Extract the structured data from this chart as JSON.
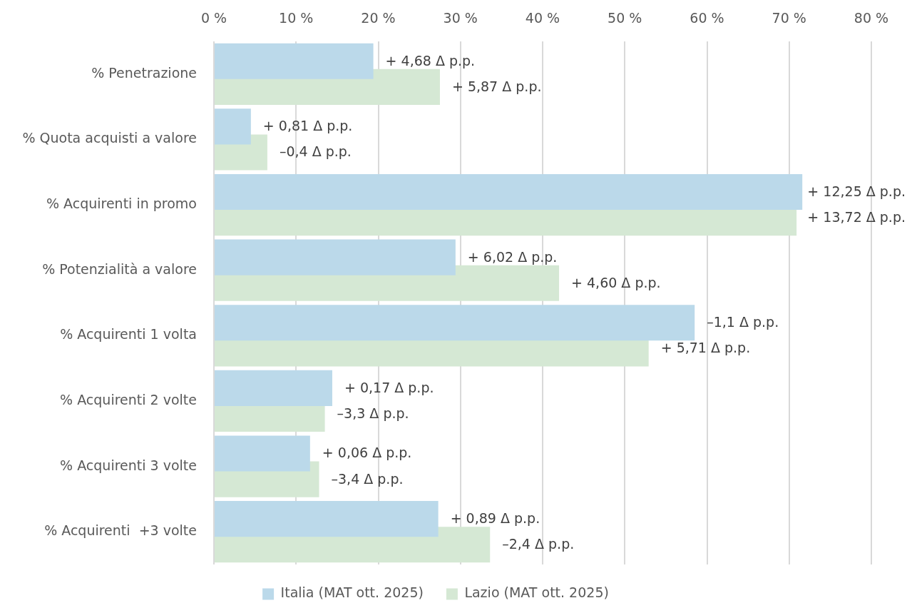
{
  "chart_data": {
    "type": "bar",
    "orientation": "horizontal",
    "categories": [
      "% Penetrazione",
      "% Quota acquisti a valore",
      "% Acquirenti in promo",
      "% Potenzialità a valore",
      "% Acquirenti 1 volta",
      "% Acquirenti 2 volte",
      "% Acquirenti 3 volte",
      "% Acquirenti  +3 volte"
    ],
    "series": [
      {
        "name": "Italia (MAT ott. 2025)",
        "color": "#bbd9ea",
        "values": [
          19.4,
          4.5,
          71.6,
          29.4,
          58.5,
          14.4,
          11.7,
          27.3
        ]
      },
      {
        "name": "Lazio (MAT ott. 2025)",
        "color": "#d5e8d4",
        "values": [
          27.5,
          6.5,
          70.9,
          42.0,
          52.9,
          13.5,
          12.8,
          33.6
        ]
      }
    ],
    "annotations": [
      {
        "text": "+ 4,68 Δ p.p.",
        "x": 19.4,
        "y": "% Penetrazione"
      },
      {
        "text": "+ 5,87 Δ p.p.",
        "x": 27.5,
        "y": "% Penetrazione"
      },
      {
        "text": "+ 0,81 Δ p.p.",
        "x": 4.5,
        "y": "% Quota acquisti a valore"
      },
      {
        "text": "–0,4 Δ p.p.",
        "x": 6.5,
        "y": "% Quota acquisti a valore"
      },
      {
        "text": "+ 12,25 Δ p.p.",
        "x": 71.6,
        "y": "% Acquirenti in promo"
      },
      {
        "text": "+ 13,72 Δ p.p.",
        "x": 70.9,
        "y": "% Acquirenti in promo"
      },
      {
        "text": "+ 6,02 Δ p.p.",
        "x": 29.4,
        "y": "% Potenzialità a valore"
      },
      {
        "text": "+ 4,60 Δ p.p.",
        "x": 42.0,
        "y": "% Potenzialità a valore"
      },
      {
        "text": "–1,1 Δ p.p.",
        "x": 58.5,
        "y": "% Acquirenti 1 volta"
      },
      {
        "text": "+ 5,71 Δ p.p.",
        "x": 52.9,
        "y": "% Acquirenti 1 volta"
      },
      {
        "text": "+ 0,17 Δ p.p.",
        "x": 14.4,
        "y": "% Acquirenti 2 volte"
      },
      {
        "text": "–3,3 Δ p.p.",
        "x": 13.5,
        "y": "% Acquirenti 2 volte"
      },
      {
        "text": "+ 0,06 Δ p.p.",
        "x": 11.7,
        "y": "% Acquirenti 3 volte"
      },
      {
        "text": "–3,4 Δ p.p.",
        "x": 12.8,
        "y": "% Acquirenti 3 volte"
      },
      {
        "text": "+ 0,89 Δ p.p.",
        "x": 27.3,
        "y": "% Acquirenti  +3 volte"
      },
      {
        "text": "–2,4 Δ p.p.",
        "x": 33.6,
        "y": "% Acquirenti  +3 volte"
      }
    ],
    "xlim": [
      0,
      80
    ],
    "xticks": [
      {
        "value": 0,
        "label": "0 %"
      },
      {
        "value": 10,
        "label": "10 %"
      },
      {
        "value": 20,
        "label": "20 %"
      },
      {
        "value": 30,
        "label": "30 %"
      },
      {
        "value": 40,
        "label": "40 %"
      },
      {
        "value": 50,
        "label": "50 %"
      },
      {
        "value": 60,
        "label": "60 %"
      },
      {
        "value": 70,
        "label": "70 %"
      },
      {
        "value": 80,
        "label": "80 %"
      }
    ],
    "grid": "x",
    "legend": "bottom"
  }
}
